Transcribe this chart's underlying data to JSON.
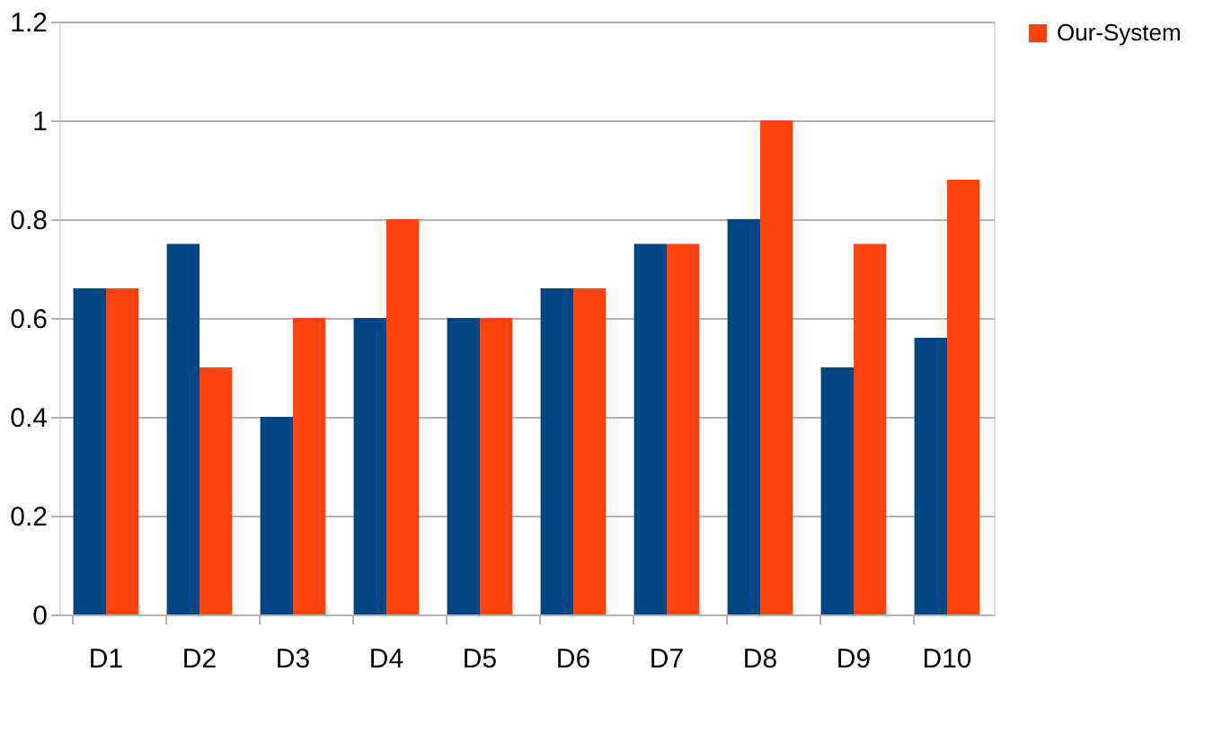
{
  "chart_data": {
    "type": "bar",
    "categories": [
      "D1",
      "D2",
      "D3",
      "D4",
      "D5",
      "D6",
      "D7",
      "D8",
      "D9",
      "D10"
    ],
    "series": [
      {
        "color": "#004586",
        "values": [
          0.66,
          0.75,
          0.4,
          0.6,
          0.6,
          0.66,
          0.75,
          0.8,
          0.5,
          0.56
        ]
      },
      {
        "name": "Our-System",
        "color": "#ff420e",
        "values": [
          0.66,
          0.5,
          0.6,
          0.8,
          0.6,
          0.66,
          0.75,
          1.0,
          0.75,
          0.88
        ]
      }
    ],
    "ylim": [
      0,
      1.2
    ],
    "yticks": [
      0,
      0.2,
      0.4,
      0.6,
      0.8,
      1,
      1.2
    ],
    "grid": "y",
    "legend": "right"
  }
}
